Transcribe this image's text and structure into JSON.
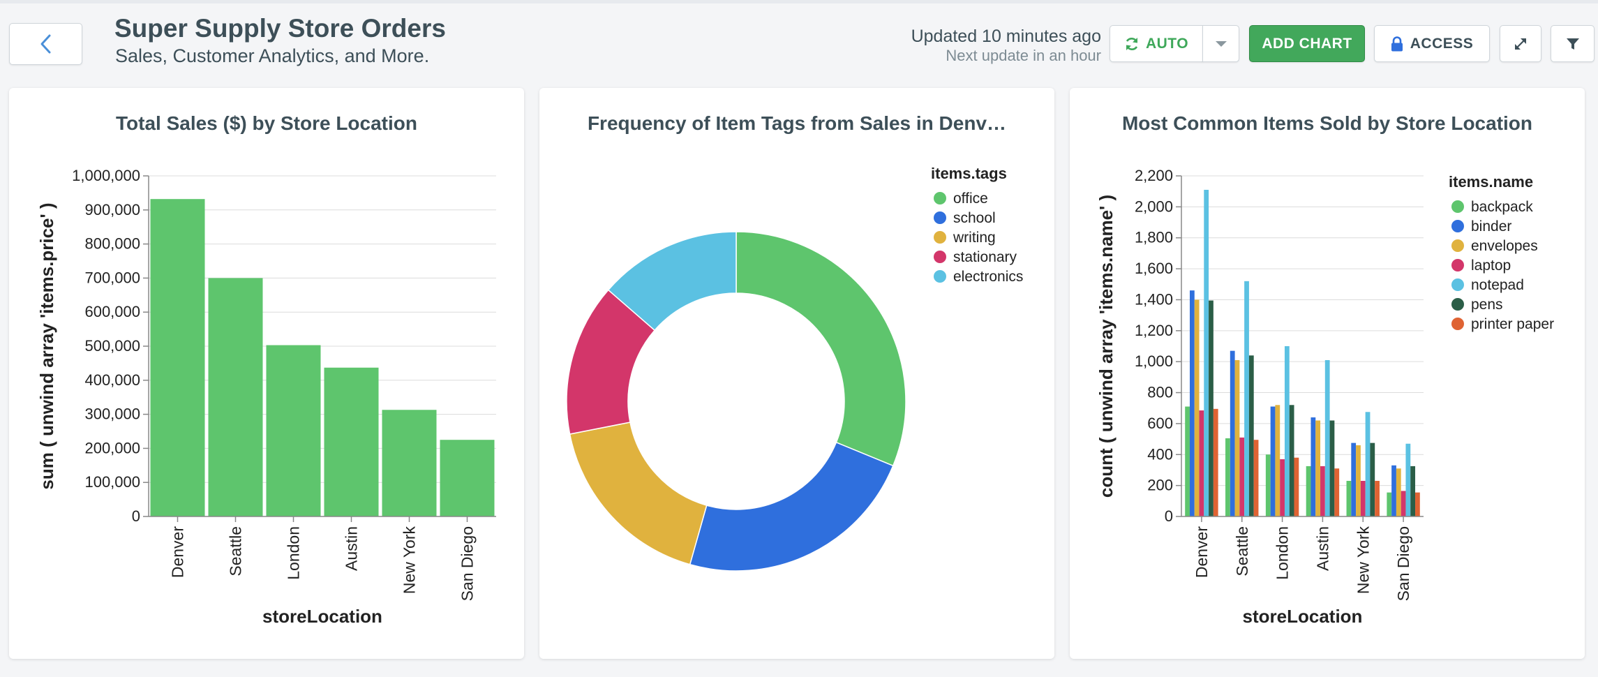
{
  "header": {
    "title": "Super Supply Store Orders",
    "subtitle": "Sales, Customer Analytics, and More.",
    "updated": "Updated 10 minutes ago",
    "next_update": "Next update in an hour",
    "auto_label": "AUTO",
    "add_chart_label": "ADD CHART",
    "access_label": "ACCESS",
    "icons": [
      "back-chevron-icon",
      "refresh-icon",
      "caret-down-icon",
      "lock-icon",
      "expand-icon",
      "filter-icon"
    ]
  },
  "colors": {
    "accent_green": "#42a85b",
    "bar_green": "#5ec56d",
    "backpack": "#5ec56d",
    "binder": "#2f6fdd",
    "envelopes": "#e0b23e",
    "laptop": "#d3366a",
    "notepad": "#5bc1e2",
    "pens": "#2b5e47",
    "printer_paper": "#df6333"
  },
  "chart_data": [
    {
      "type": "bar",
      "title": "Total Sales ($) by Store Location",
      "xlabel": "storeLocation",
      "ylabel": "sum ( unwind array 'items.price' )",
      "ylim": [
        0,
        1000000
      ],
      "yticks": [
        0,
        100000,
        200000,
        300000,
        400000,
        500000,
        600000,
        700000,
        800000,
        900000,
        1000000
      ],
      "ytick_labels": [
        "0",
        "100,000",
        "200,000",
        "300,000",
        "400,000",
        "500,000",
        "600,000",
        "700,000",
        "800,000",
        "900,000",
        "1,000,000"
      ],
      "categories": [
        "Denver",
        "Seattle",
        "London",
        "Austin",
        "New York",
        "San Diego"
      ],
      "values": [
        932000,
        700000,
        503000,
        437000,
        313000,
        225000
      ],
      "grid": true
    },
    {
      "type": "pie",
      "title": "Frequency of Item Tags from Sales in Denv…",
      "legend_title": "items.tags",
      "legend_position": "top-right",
      "donut": true,
      "slices": [
        {
          "label": "office",
          "value": 31.2,
          "color": "#5ec56d"
        },
        {
          "label": "school",
          "value": 23.2,
          "color": "#2f6fdd"
        },
        {
          "label": "writing",
          "value": 17.5,
          "color": "#e0b23e"
        },
        {
          "label": "stationary",
          "value": 14.5,
          "color": "#d3366a"
        },
        {
          "label": "electronics",
          "value": 13.6,
          "color": "#5bc1e2"
        }
      ]
    },
    {
      "type": "bar",
      "title": "Most Common Items Sold by Store Location",
      "xlabel": "storeLocation",
      "ylabel": "count ( unwind array 'items.name' )",
      "ylim": [
        0,
        2200
      ],
      "yticks": [
        0,
        200,
        400,
        600,
        800,
        1000,
        1200,
        1400,
        1600,
        1800,
        2000,
        2200
      ],
      "ytick_labels": [
        "0",
        "200",
        "400",
        "600",
        "800",
        "1,000",
        "1,200",
        "1,400",
        "1,600",
        "1,800",
        "2,000",
        "2,200"
      ],
      "categories": [
        "Denver",
        "Seattle",
        "London",
        "Austin",
        "New York",
        "San Diego"
      ],
      "legend_title": "items.name",
      "legend_position": "top-right",
      "grid": true,
      "series": [
        {
          "name": "backpack",
          "color": "#5ec56d",
          "values": [
            710,
            505,
            400,
            325,
            230,
            155
          ]
        },
        {
          "name": "binder",
          "color": "#2f6fdd",
          "values": [
            1460,
            1070,
            710,
            640,
            475,
            330
          ]
        },
        {
          "name": "envelopes",
          "color": "#e0b23e",
          "values": [
            1400,
            1010,
            720,
            620,
            460,
            310
          ]
        },
        {
          "name": "laptop",
          "color": "#d3366a",
          "values": [
            685,
            510,
            370,
            325,
            230,
            165
          ]
        },
        {
          "name": "notepad",
          "color": "#5bc1e2",
          "values": [
            2110,
            1520,
            1100,
            1010,
            675,
            470
          ]
        },
        {
          "name": "pens",
          "color": "#2b5e47",
          "values": [
            1395,
            1040,
            720,
            620,
            475,
            325
          ]
        },
        {
          "name": "printer paper",
          "color": "#df6333",
          "values": [
            695,
            495,
            380,
            310,
            230,
            155
          ]
        }
      ]
    }
  ]
}
